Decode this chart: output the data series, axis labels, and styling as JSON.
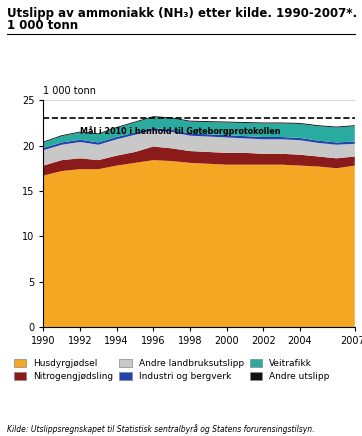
{
  "title_line1": "Utslipp av ammoniakk (NH₃) etter kilde. 1990-2007*.",
  "title_line2": "1 000 tonn",
  "ylabel_above": "1 000 tonn",
  "years": [
    1990,
    1991,
    1992,
    1993,
    1994,
    1995,
    1996,
    1997,
    1998,
    1999,
    2000,
    2001,
    2002,
    2003,
    2004,
    2005,
    2006,
    2007
  ],
  "husdyrgjodsel": [
    16.7,
    17.2,
    17.4,
    17.4,
    17.8,
    18.1,
    18.4,
    18.3,
    18.1,
    18.0,
    17.9,
    17.9,
    17.9,
    17.9,
    17.8,
    17.7,
    17.5,
    17.8
  ],
  "nitrogengjodsel": [
    1.1,
    1.2,
    1.2,
    1.0,
    1.1,
    1.2,
    1.5,
    1.4,
    1.3,
    1.3,
    1.3,
    1.3,
    1.2,
    1.2,
    1.2,
    1.1,
    1.1,
    1.0
  ],
  "andre_landbruk": [
    1.7,
    1.7,
    1.8,
    1.7,
    1.8,
    1.9,
    1.8,
    1.8,
    1.7,
    1.7,
    1.7,
    1.6,
    1.6,
    1.6,
    1.6,
    1.5,
    1.5,
    1.4
  ],
  "industri": [
    0.25,
    0.25,
    0.25,
    0.25,
    0.25,
    0.25,
    0.25,
    0.25,
    0.25,
    0.25,
    0.25,
    0.25,
    0.25,
    0.25,
    0.25,
    0.25,
    0.25,
    0.25
  ],
  "veitrafikk": [
    0.6,
    0.7,
    0.8,
    0.9,
    1.0,
    1.1,
    1.2,
    1.25,
    1.3,
    1.35,
    1.4,
    1.45,
    1.5,
    1.5,
    1.55,
    1.6,
    1.65,
    1.7
  ],
  "andre_utslipp": [
    0.1,
    0.1,
    0.1,
    0.1,
    0.1,
    0.1,
    0.1,
    0.1,
    0.1,
    0.1,
    0.1,
    0.1,
    0.1,
    0.1,
    0.1,
    0.1,
    0.1,
    0.1
  ],
  "color_husdyr": "#F5A623",
  "color_nitro": "#8B1A1A",
  "color_landbruk": "#C8C8C8",
  "color_industri": "#2244AA",
  "color_vei": "#2AABA0",
  "color_andre": "#111111",
  "goal_line": 23.0,
  "goal_label": "Mål i 2010 i henhold til Gøteborgprotokollen",
  "ylim": [
    0,
    25
  ],
  "yticks": [
    0,
    5,
    10,
    15,
    20,
    25
  ],
  "xticks": [
    1990,
    1992,
    1994,
    1996,
    1998,
    2000,
    2002,
    2004,
    2007
  ],
  "xticklabels": [
    "1990",
    "1992",
    "1994",
    "1996",
    "1998",
    "2000",
    "2002",
    "2004",
    "2007*"
  ],
  "source": "Kilde: Utslippsregnskapet til Statistisk sentralbyrå og Statens forurensingstilsyn.",
  "legend_labels": [
    "Husdyrgjødsel",
    "Nitrogengjødsling",
    "Andre landbruksutslipp",
    "Industri og bergverk",
    "Veitrafikk",
    "Andre utslipp"
  ]
}
